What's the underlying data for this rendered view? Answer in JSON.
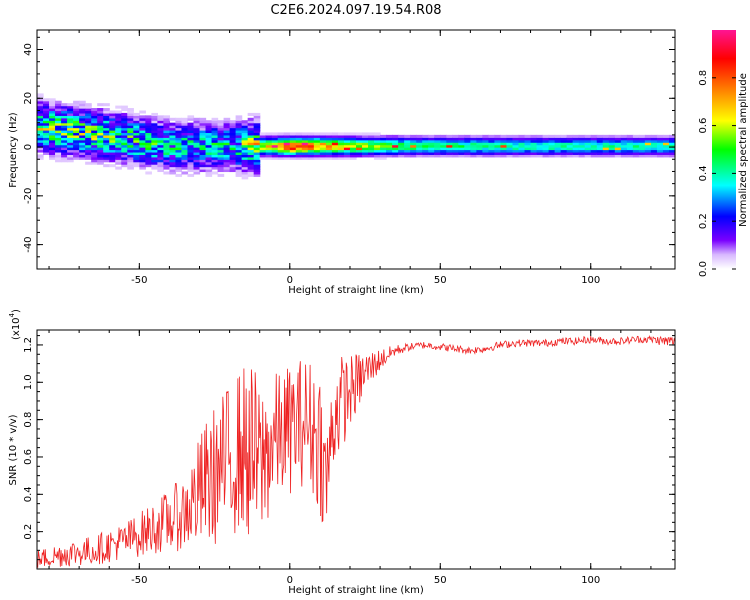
{
  "title": "C2E6.2024.097.19.54.R08",
  "chart_data": [
    {
      "type": "heatmap",
      "xlabel": "Height of straight line (km)",
      "ylabel": "Frequency (Hz)",
      "xlim": [
        -84,
        128
      ],
      "ylim": [
        -50,
        48
      ],
      "xticks": [
        -50,
        0,
        50,
        100
      ],
      "yticks": [
        -40,
        -20,
        0,
        20,
        40
      ],
      "colorbar": {
        "label": "Normalized spectral amplitude",
        "ticks": [
          "0.0",
          "0.2",
          "0.4",
          "0.6",
          "0.8"
        ],
        "range": [
          0,
          1
        ],
        "colors": [
          "#ffffff",
          "#7a00ff",
          "#0000ff",
          "#00ffff",
          "#00ff00",
          "#ffff00",
          "#ff8000",
          "#ff0000",
          "#ff1493"
        ]
      },
      "ridge": {
        "description_points_x": [
          -84,
          -60,
          -40,
          -20,
          0,
          20,
          40,
          80,
          128
        ],
        "center_freq": [
          8,
          4,
          0,
          0,
          0,
          0,
          0,
          0,
          0
        ],
        "peak_amplitude": [
          0.5,
          0.45,
          0.35,
          0.35,
          0.85,
          0.6,
          0.45,
          0.4,
          0.4
        ]
      }
    },
    {
      "type": "line",
      "xlabel": "Height of straight line (km)",
      "ylabel": "SNR (10 * v/v)",
      "yscale_label": "(x10",
      "yscale_exp": "4",
      "yscale_close": ")",
      "xlim": [
        -84,
        128
      ],
      "ylim": [
        0,
        1.28
      ],
      "xticks": [
        -50,
        0,
        50,
        100
      ],
      "yticks": [
        "0.2",
        "0.4",
        "0.6",
        "0.8",
        "1.0",
        "1.2"
      ],
      "ytick_values": [
        0.2,
        0.4,
        0.6,
        0.8,
        1.0,
        1.2
      ],
      "series": [
        {
          "color": "#ee2222",
          "x": [
            -84,
            -75,
            -65,
            -55,
            -45,
            -35,
            -28,
            -22,
            -16,
            -12,
            -10,
            -5,
            0,
            5,
            10,
            12,
            15,
            20,
            25,
            30,
            35,
            40,
            45,
            50,
            55,
            60,
            65,
            70,
            75,
            80,
            85,
            90,
            95,
            100,
            105,
            110,
            115,
            120,
            125,
            128
          ],
          "mean": [
            0.05,
            0.08,
            0.1,
            0.15,
            0.22,
            0.3,
            0.45,
            0.55,
            0.65,
            0.6,
            0.55,
            0.7,
            0.75,
            0.8,
            0.7,
            0.45,
            0.85,
            0.95,
            1.05,
            1.12,
            1.17,
            1.19,
            1.2,
            1.19,
            1.18,
            1.17,
            1.18,
            1.2,
            1.21,
            1.21,
            1.21,
            1.22,
            1.22,
            1.23,
            1.22,
            1.22,
            1.23,
            1.23,
            1.22,
            1.22
          ],
          "noise": [
            0.05,
            0.07,
            0.08,
            0.1,
            0.14,
            0.2,
            0.35,
            0.4,
            0.45,
            0.5,
            0.45,
            0.35,
            0.35,
            0.35,
            0.4,
            0.3,
            0.3,
            0.2,
            0.12,
            0.06,
            0.03,
            0.02,
            0.02,
            0.02,
            0.02,
            0.02,
            0.02,
            0.02,
            0.02,
            0.02,
            0.02,
            0.02,
            0.02,
            0.02,
            0.02,
            0.02,
            0.02,
            0.02,
            0.03,
            0.03
          ]
        }
      ]
    }
  ]
}
